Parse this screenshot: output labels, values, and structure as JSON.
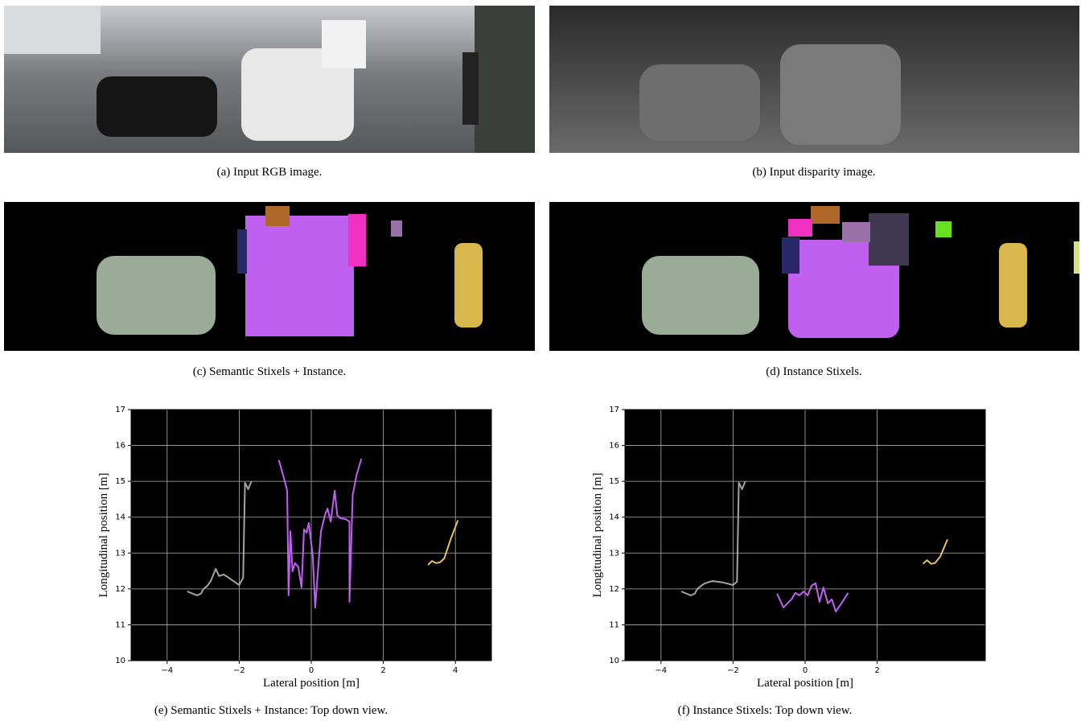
{
  "panels": [
    {
      "caption": "(a) Input RGB image."
    },
    {
      "caption": "(b) Input disparity image."
    },
    {
      "caption": "(c) Semantic Stixels + Instance."
    },
    {
      "caption": "(d) Instance Stixels."
    }
  ],
  "chart_data": [
    {
      "type": "line",
      "caption": "(e) Semantic Stixels + Instance: Top down view.",
      "xlabel": "Lateral position [m]",
      "ylabel": "Longitudinal position [m]",
      "xlim": [
        -5,
        5
      ],
      "ylim": [
        10,
        17
      ],
      "xticks": [
        {
          "value": -4,
          "label": "−4"
        },
        {
          "value": -2,
          "label": "−2"
        },
        0,
        2,
        4
      ],
      "yticks": [
        10,
        11,
        12,
        13,
        14,
        15,
        16,
        17
      ],
      "grid": true,
      "series": [
        {
          "color": "#9aab98",
          "x": [
            -3.44,
            -3.17,
            -3.06,
            -2.99,
            -2.88,
            -2.79,
            -2.65,
            -2.56,
            -2.43,
            -2.29,
            -2.16,
            -2.0,
            -1.89,
            -1.84,
            -1.75,
            -1.66
          ],
          "values": [
            11.93,
            11.82,
            11.87,
            12.0,
            12.09,
            12.22,
            12.56,
            12.36,
            12.4,
            12.31,
            12.22,
            12.11,
            12.31,
            14.96,
            14.78,
            15.0
          ]
        },
        {
          "color": "#c060f0",
          "x": [
            -0.9,
            -0.76,
            -0.67,
            -0.63,
            -0.58,
            -0.52,
            -0.45,
            -0.36,
            -0.27,
            -0.2,
            -0.13,
            -0.07,
            0.04,
            0.11,
            0.2,
            0.27,
            0.38,
            0.45,
            0.54,
            0.65,
            0.72,
            0.81,
            0.94,
            1.06,
            1.06,
            1.15,
            1.26,
            1.39
          ],
          "values": [
            15.59,
            15.09,
            14.74,
            11.82,
            13.61,
            12.49,
            12.72,
            12.61,
            12.04,
            13.66,
            13.57,
            13.84,
            12.94,
            11.48,
            12.72,
            13.61,
            14.06,
            14.24,
            13.88,
            14.74,
            14.06,
            13.97,
            13.95,
            13.88,
            11.64,
            14.62,
            15.18,
            15.63
          ]
        },
        {
          "color": "#e8c060",
          "x": [
            3.24,
            3.35,
            3.46,
            3.57,
            3.69,
            3.87,
            4.07
          ],
          "values": [
            12.67,
            12.78,
            12.72,
            12.74,
            12.85,
            13.39,
            13.91
          ]
        }
      ]
    },
    {
      "type": "line",
      "caption": "(f) Instance Stixels: Top down view.",
      "xlabel": "Lateral position [m]",
      "ylabel": "Longitudinal position [m]",
      "xlim": [
        -5,
        5
      ],
      "ylim": [
        10,
        17
      ],
      "xticks": [
        {
          "value": -4,
          "label": "−4"
        },
        {
          "value": -2,
          "label": "−2"
        },
        0,
        2
      ],
      "yticks": [
        10,
        11,
        12,
        13,
        14,
        15,
        16,
        17
      ],
      "grid": true,
      "series": [
        {
          "color": "#9aab98",
          "x": [
            -3.44,
            -3.17,
            -3.06,
            -2.99,
            -2.88,
            -2.79,
            -2.65,
            -2.56,
            -2.43,
            -2.29,
            -2.16,
            -2.0,
            -1.89,
            -1.84,
            -1.75,
            -1.66
          ],
          "values": [
            11.93,
            11.82,
            11.87,
            12.0,
            12.09,
            12.15,
            12.2,
            12.22,
            12.2,
            12.18,
            12.15,
            12.11,
            12.2,
            14.96,
            14.78,
            15.0
          ]
        },
        {
          "color": "#c060f0",
          "x": [
            -0.78,
            -0.6,
            -0.49,
            -0.38,
            -0.27,
            -0.16,
            -0.04,
            0.07,
            0.18,
            0.29,
            0.4,
            0.51,
            0.63,
            0.74,
            0.85,
            1.01,
            1.19
          ],
          "values": [
            11.87,
            11.48,
            11.6,
            11.71,
            11.89,
            11.82,
            11.93,
            11.82,
            12.09,
            12.16,
            11.64,
            12.04,
            11.6,
            11.71,
            11.37,
            11.6,
            11.89
          ]
        },
        {
          "color": "#e8c060",
          "x": [
            3.27,
            3.38,
            3.5,
            3.6,
            3.75,
            3.95
          ],
          "values": [
            12.7,
            12.8,
            12.7,
            12.72,
            12.9,
            13.38
          ]
        }
      ]
    }
  ]
}
